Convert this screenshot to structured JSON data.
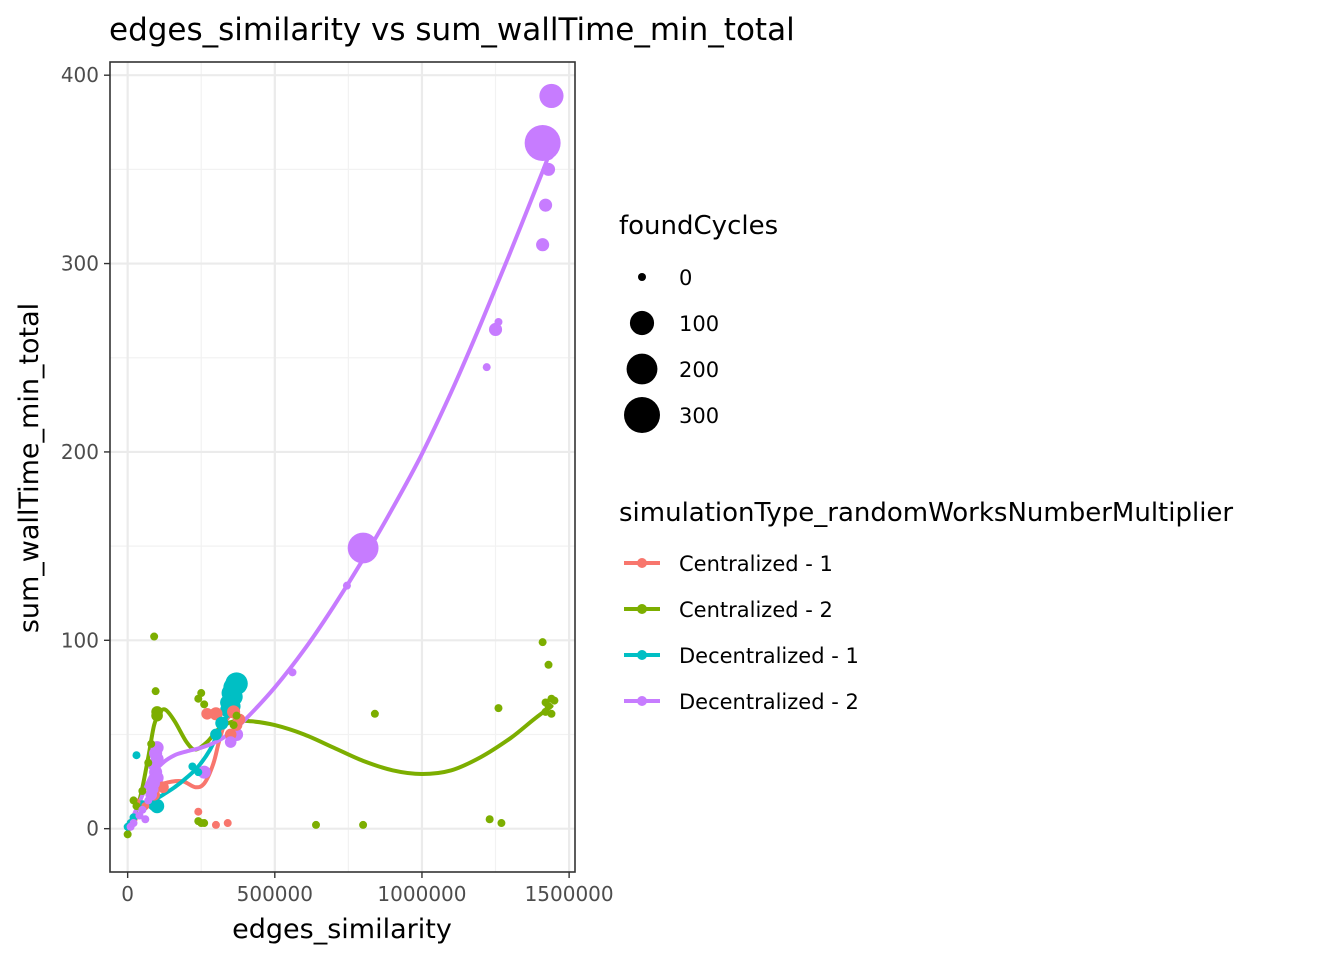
{
  "chart_data": {
    "type": "scatter",
    "title": "edges_similarity  vs  sum_wallTime_min_total",
    "xlabel": "edges_similarity",
    "ylabel": "sum_wallTime_min_total",
    "xlim": [
      -60000,
      1520000
    ],
    "ylim": [
      -23,
      407
    ],
    "x_ticks": [
      0,
      500000,
      1000000,
      1500000
    ],
    "x_tick_labels": [
      "0",
      "500000",
      "1000000",
      "1500000"
    ],
    "y_ticks": [
      0,
      100,
      200,
      300,
      400
    ],
    "y_tick_labels": [
      "0",
      "100",
      "200",
      "300",
      "400"
    ],
    "grid": true,
    "size_legend": {
      "title": "foundCycles",
      "entries": [
        {
          "label": "0",
          "value": 0
        },
        {
          "label": "100",
          "value": 100
        },
        {
          "label": "200",
          "value": 200
        },
        {
          "label": "300",
          "value": 300
        }
      ]
    },
    "color_legend": {
      "title": "simulationType_randomWorksNumberMultiplier",
      "placement": "right"
    },
    "series": [
      {
        "name": "Centralized - 1",
        "color": "#F8766D",
        "points": [
          [
            300000,
            61,
            10
          ],
          [
            270000,
            61,
            5
          ],
          [
            240000,
            9,
            0
          ],
          [
            300000,
            2,
            0
          ],
          [
            340000,
            3,
            0
          ],
          [
            350000,
            50,
            5
          ],
          [
            360000,
            62,
            10
          ],
          [
            90000,
            18,
            5
          ],
          [
            120000,
            22,
            5
          ],
          [
            60000,
            12,
            0
          ],
          [
            20000,
            5,
            0
          ],
          [
            30000,
            14,
            0
          ],
          [
            5000,
            1,
            0
          ],
          [
            370000,
            55,
            5
          ],
          [
            380000,
            58,
            5
          ]
        ],
        "smooth": [
          [
            0,
            0
          ],
          [
            40000,
            8
          ],
          [
            80000,
            18
          ],
          [
            110000,
            23
          ],
          [
            150000,
            25
          ],
          [
            190000,
            25
          ],
          [
            230000,
            22
          ],
          [
            260000,
            24
          ],
          [
            290000,
            34
          ],
          [
            310000,
            46
          ],
          [
            330000,
            56
          ],
          [
            350000,
            60
          ],
          [
            370000,
            58
          ]
        ]
      },
      {
        "name": "Centralized - 2",
        "color": "#7CAE00",
        "points": [
          [
            90000,
            102,
            0
          ],
          [
            95000,
            73,
            0
          ],
          [
            100000,
            62,
            5
          ],
          [
            100000,
            60,
            5
          ],
          [
            240000,
            69,
            0
          ],
          [
            250000,
            72,
            0
          ],
          [
            260000,
            66,
            0
          ],
          [
            240000,
            4,
            0
          ],
          [
            250000,
            3,
            0
          ],
          [
            260000,
            3,
            0
          ],
          [
            640000,
            2,
            0
          ],
          [
            800000,
            2,
            0
          ],
          [
            840000,
            61,
            0
          ],
          [
            1230000,
            5,
            0
          ],
          [
            1270000,
            3,
            0
          ],
          [
            1260000,
            64,
            0
          ],
          [
            1410000,
            99,
            0
          ],
          [
            1420000,
            67,
            0
          ],
          [
            1430000,
            87,
            0
          ],
          [
            1440000,
            61,
            0
          ],
          [
            1450000,
            68,
            0
          ],
          [
            1420000,
            62,
            0
          ],
          [
            1430000,
            65,
            0
          ],
          [
            1440000,
            69,
            0
          ],
          [
            20000,
            15,
            0
          ],
          [
            30000,
            12,
            0
          ],
          [
            50000,
            20,
            0
          ],
          [
            70000,
            35,
            0
          ],
          [
            80000,
            45,
            0
          ],
          [
            0,
            -3,
            0
          ],
          [
            360000,
            55,
            0
          ],
          [
            370000,
            60,
            0
          ]
        ],
        "smooth": [
          [
            0,
            -2
          ],
          [
            40000,
            15
          ],
          [
            70000,
            38
          ],
          [
            90000,
            55
          ],
          [
            110000,
            62
          ],
          [
            130000,
            63
          ],
          [
            160000,
            57
          ],
          [
            200000,
            46
          ],
          [
            230000,
            42
          ],
          [
            270000,
            46
          ],
          [
            310000,
            53
          ],
          [
            360000,
            57
          ],
          [
            420000,
            57
          ],
          [
            500000,
            55
          ],
          [
            600000,
            50
          ],
          [
            700000,
            43
          ],
          [
            800000,
            36
          ],
          [
            900000,
            31
          ],
          [
            1000000,
            29
          ],
          [
            1100000,
            31
          ],
          [
            1200000,
            38
          ],
          [
            1300000,
            48
          ],
          [
            1380000,
            58
          ],
          [
            1440000,
            65
          ]
        ]
      },
      {
        "name": "Decentralized - 1",
        "color": "#00BFC4",
        "points": [
          [
            30000,
            39,
            0
          ],
          [
            50000,
            12,
            5
          ],
          [
            90000,
            13,
            10
          ],
          [
            100000,
            12,
            15
          ],
          [
            220000,
            33,
            0
          ],
          [
            240000,
            30,
            0
          ],
          [
            300000,
            50,
            5
          ],
          [
            320000,
            56,
            10
          ],
          [
            340000,
            63,
            20
          ],
          [
            350000,
            72,
            40
          ],
          [
            360000,
            75,
            60
          ],
          [
            370000,
            77,
            80
          ],
          [
            340000,
            67,
            20
          ],
          [
            355000,
            65,
            30
          ],
          [
            360000,
            70,
            40
          ],
          [
            0,
            1,
            0
          ],
          [
            10000,
            3,
            0
          ],
          [
            20000,
            6,
            0
          ]
        ],
        "smooth": [
          [
            0,
            0
          ],
          [
            40000,
            8
          ],
          [
            80000,
            14
          ],
          [
            120000,
            18
          ],
          [
            160000,
            22
          ],
          [
            200000,
            27
          ],
          [
            240000,
            33
          ],
          [
            280000,
            42
          ],
          [
            320000,
            55
          ],
          [
            350000,
            63
          ],
          [
            370000,
            68
          ]
        ]
      },
      {
        "name": "Decentralized - 2",
        "color": "#C77CFF",
        "points": [
          [
            1440000,
            389,
            100
          ],
          [
            1410000,
            364,
            300
          ],
          [
            1430000,
            358,
            5
          ],
          [
            1430000,
            350,
            10
          ],
          [
            1420000,
            331,
            10
          ],
          [
            1410000,
            310,
            10
          ],
          [
            1260000,
            269,
            0
          ],
          [
            1250000,
            265,
            10
          ],
          [
            1220000,
            245,
            0
          ],
          [
            800000,
            149,
            200
          ],
          [
            745000,
            129,
            0
          ],
          [
            560000,
            83,
            0
          ],
          [
            370000,
            50,
            10
          ],
          [
            350000,
            46,
            5
          ],
          [
            260000,
            30,
            10
          ],
          [
            100000,
            43,
            10
          ],
          [
            95000,
            40,
            10
          ],
          [
            100000,
            37,
            10
          ],
          [
            90000,
            34,
            10
          ],
          [
            95000,
            30,
            10
          ],
          [
            100000,
            27,
            10
          ],
          [
            90000,
            24,
            5
          ],
          [
            85000,
            21,
            5
          ],
          [
            80000,
            18,
            5
          ],
          [
            70000,
            15,
            0
          ],
          [
            50000,
            10,
            0
          ],
          [
            40000,
            7,
            0
          ],
          [
            60000,
            5,
            0
          ],
          [
            20000,
            3,
            0
          ],
          [
            10000,
            1,
            0
          ]
        ],
        "smooth": [
          [
            0,
            0
          ],
          [
            40000,
            14
          ],
          [
            80000,
            28
          ],
          [
            120000,
            35
          ],
          [
            160000,
            39
          ],
          [
            200000,
            41
          ],
          [
            250000,
            43
          ],
          [
            300000,
            46
          ],
          [
            350000,
            51
          ],
          [
            400000,
            58
          ],
          [
            500000,
            75
          ],
          [
            600000,
            95
          ],
          [
            700000,
            118
          ],
          [
            800000,
            143
          ],
          [
            900000,
            170
          ],
          [
            1000000,
            199
          ],
          [
            1100000,
            232
          ],
          [
            1200000,
            268
          ],
          [
            1300000,
            306
          ],
          [
            1400000,
            345
          ],
          [
            1430000,
            357
          ]
        ]
      }
    ]
  }
}
